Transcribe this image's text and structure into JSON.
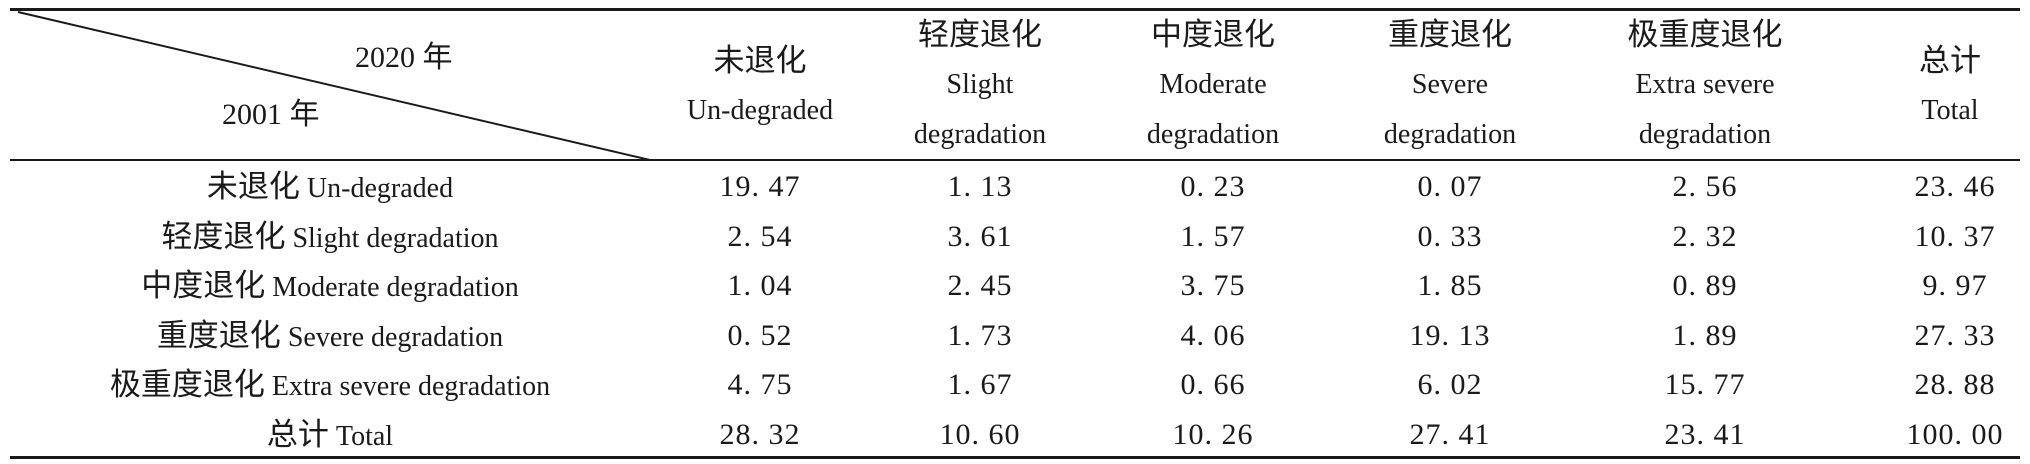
{
  "table": {
    "corner": {
      "col_year": "2020 年",
      "row_year": "2001 年"
    },
    "columns": [
      {
        "zh": "未退化",
        "en": [
          "Un-degraded"
        ]
      },
      {
        "zh": "轻度退化",
        "en": [
          "Slight",
          "degradation"
        ]
      },
      {
        "zh": "中度退化",
        "en": [
          "Moderate",
          "degradation"
        ]
      },
      {
        "zh": "重度退化",
        "en": [
          "Severe",
          "degradation"
        ]
      },
      {
        "zh": "极重度退化",
        "en": [
          "Extra severe",
          "degradation"
        ]
      },
      {
        "zh": "总计",
        "en": [
          "Total"
        ]
      }
    ],
    "rows": [
      {
        "zh": "未退化",
        "en": "Un-degraded",
        "values": [
          "19. 47",
          "1. 13",
          "0. 23",
          "0. 07",
          "2. 56",
          "23. 46"
        ]
      },
      {
        "zh": "轻度退化",
        "en": "Slight degradation",
        "values": [
          "2. 54",
          "3. 61",
          "1. 57",
          "0. 33",
          "2. 32",
          "10. 37"
        ]
      },
      {
        "zh": "中度退化",
        "en": "Moderate degradation",
        "values": [
          "1. 04",
          "2. 45",
          "3. 75",
          "1. 85",
          "0. 89",
          "9. 97"
        ]
      },
      {
        "zh": "重度退化",
        "en": "Severe degradation",
        "values": [
          "0. 52",
          "1. 73",
          "4. 06",
          "19. 13",
          "1. 89",
          "27. 33"
        ]
      },
      {
        "zh": "极重度退化",
        "en": "Extra severe degradation",
        "values": [
          "4. 75",
          "1. 67",
          "0. 66",
          "6. 02",
          "15. 77",
          "28. 88"
        ]
      },
      {
        "zh": "总计",
        "en": "Total",
        "values": [
          "28. 32",
          "10. 60",
          "10. 26",
          "27. 41",
          "23. 41",
          "100. 00"
        ]
      }
    ]
  }
}
